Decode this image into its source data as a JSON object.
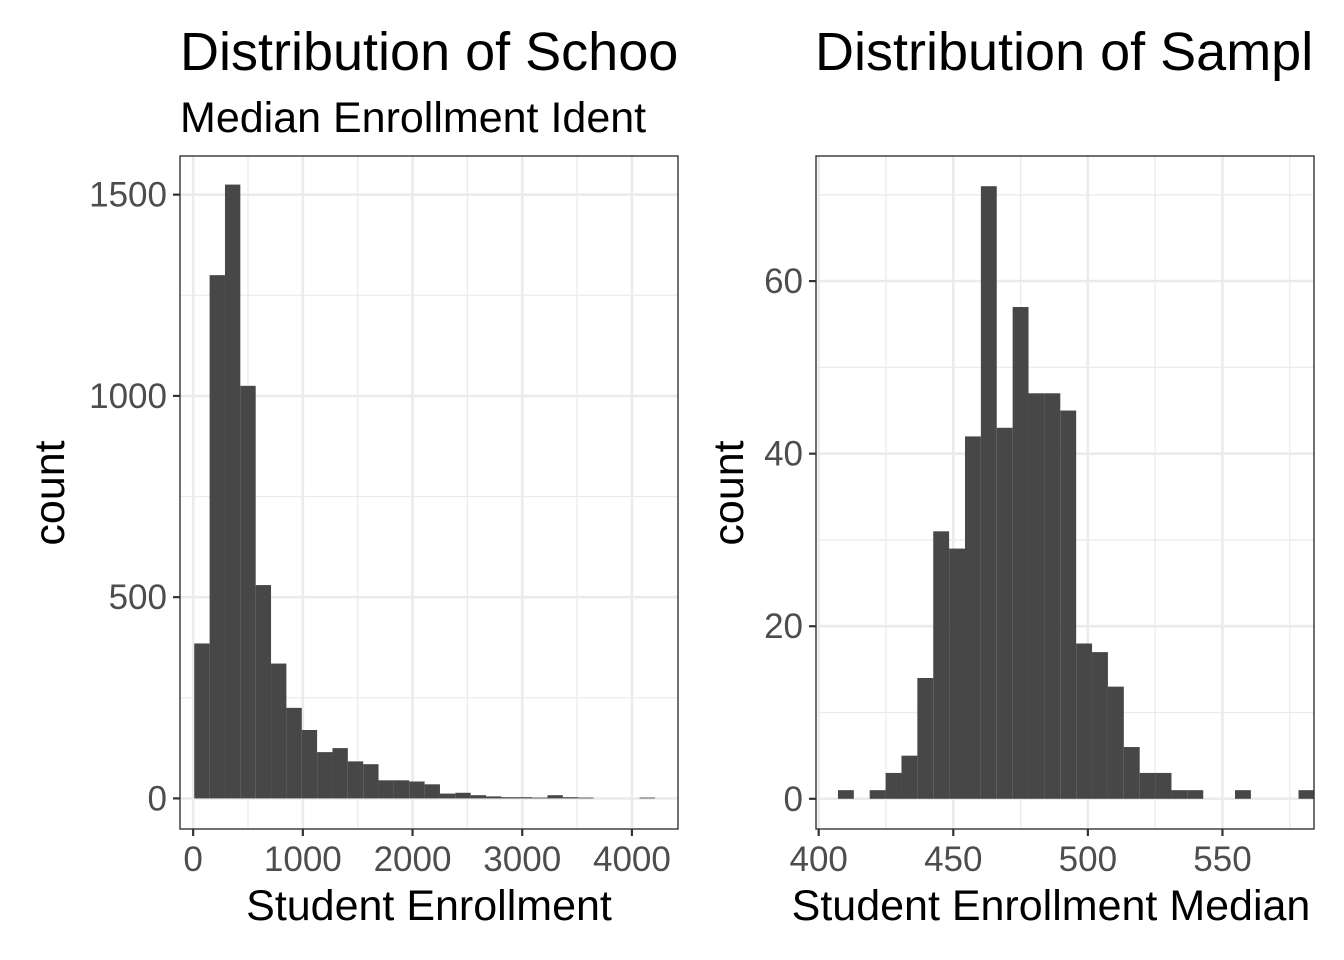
{
  "chart_data": [
    {
      "type": "bar",
      "chart_kind": "histogram",
      "title": "Distribution of Schoo",
      "subtitle": "Median Enrollment Ident",
      "xlabel": "Student Enrollment",
      "ylabel": "count",
      "xlim": [
        -120,
        4420
      ],
      "ylim": [
        -76,
        1596
      ],
      "x_ticks": [
        0,
        1000,
        2000,
        3000,
        4000
      ],
      "x_tick_labels": [
        "0",
        "1000",
        "2000",
        "3000",
        "4000"
      ],
      "y_ticks": [
        0,
        500,
        1000,
        1500
      ],
      "y_tick_labels": [
        "0",
        "500",
        "1000",
        "1500"
      ],
      "grid": true,
      "bin_width": 140,
      "bins": [
        {
          "x": 80,
          "count": 385
        },
        {
          "x": 220,
          "count": 1300
        },
        {
          "x": 360,
          "count": 1525
        },
        {
          "x": 500,
          "count": 1025
        },
        {
          "x": 640,
          "count": 530
        },
        {
          "x": 780,
          "count": 335
        },
        {
          "x": 920,
          "count": 225
        },
        {
          "x": 1060,
          "count": 170
        },
        {
          "x": 1200,
          "count": 115
        },
        {
          "x": 1340,
          "count": 125
        },
        {
          "x": 1480,
          "count": 92
        },
        {
          "x": 1620,
          "count": 85
        },
        {
          "x": 1760,
          "count": 45
        },
        {
          "x": 1900,
          "count": 45
        },
        {
          "x": 2040,
          "count": 42
        },
        {
          "x": 2180,
          "count": 35
        },
        {
          "x": 2320,
          "count": 12
        },
        {
          "x": 2460,
          "count": 14
        },
        {
          "x": 2600,
          "count": 8
        },
        {
          "x": 2740,
          "count": 5
        },
        {
          "x": 2880,
          "count": 3
        },
        {
          "x": 3020,
          "count": 3
        },
        {
          "x": 3160,
          "count": 2
        },
        {
          "x": 3300,
          "count": 8
        },
        {
          "x": 3440,
          "count": 3
        },
        {
          "x": 3580,
          "count": 2
        },
        {
          "x": 3720,
          "count": 0
        },
        {
          "x": 3860,
          "count": 0
        },
        {
          "x": 4000,
          "count": 0
        },
        {
          "x": 4140,
          "count": 2
        }
      ]
    },
    {
      "type": "bar",
      "chart_kind": "histogram",
      "title": "Distribution of Sampl",
      "subtitle": "",
      "xlabel": "Student Enrollment Median",
      "ylabel": "count",
      "xlim": [
        399,
        584
      ],
      "ylim": [
        -3.5,
        74.5
      ],
      "x_ticks": [
        400,
        450,
        500,
        550
      ],
      "x_tick_labels": [
        "400",
        "450",
        "500",
        "550"
      ],
      "y_ticks": [
        0,
        20,
        40,
        60
      ],
      "y_tick_labels": [
        "0",
        "20",
        "40",
        "60"
      ],
      "grid": true,
      "bin_width": 5.9,
      "bins": [
        {
          "x": 410.1,
          "count": 1
        },
        {
          "x": 416.0,
          "count": 0
        },
        {
          "x": 421.9,
          "count": 1
        },
        {
          "x": 427.8,
          "count": 3
        },
        {
          "x": 433.7,
          "count": 5
        },
        {
          "x": 439.6,
          "count": 14
        },
        {
          "x": 445.5,
          "count": 31
        },
        {
          "x": 451.4,
          "count": 29
        },
        {
          "x": 457.3,
          "count": 42
        },
        {
          "x": 463.2,
          "count": 71
        },
        {
          "x": 469.1,
          "count": 43
        },
        {
          "x": 475.0,
          "count": 57
        },
        {
          "x": 480.9,
          "count": 47
        },
        {
          "x": 486.8,
          "count": 47
        },
        {
          "x": 492.7,
          "count": 45
        },
        {
          "x": 498.6,
          "count": 18
        },
        {
          "x": 504.5,
          "count": 17
        },
        {
          "x": 510.4,
          "count": 13
        },
        {
          "x": 516.3,
          "count": 6
        },
        {
          "x": 522.2,
          "count": 3
        },
        {
          "x": 528.1,
          "count": 3
        },
        {
          "x": 534.0,
          "count": 1
        },
        {
          "x": 539.9,
          "count": 1
        },
        {
          "x": 545.8,
          "count": 0
        },
        {
          "x": 551.7,
          "count": 0
        },
        {
          "x": 557.6,
          "count": 1
        },
        {
          "x": 563.5,
          "count": 0
        },
        {
          "x": 569.4,
          "count": 0
        },
        {
          "x": 575.3,
          "count": 0
        },
        {
          "x": 581.2,
          "count": 1
        }
      ]
    }
  ]
}
